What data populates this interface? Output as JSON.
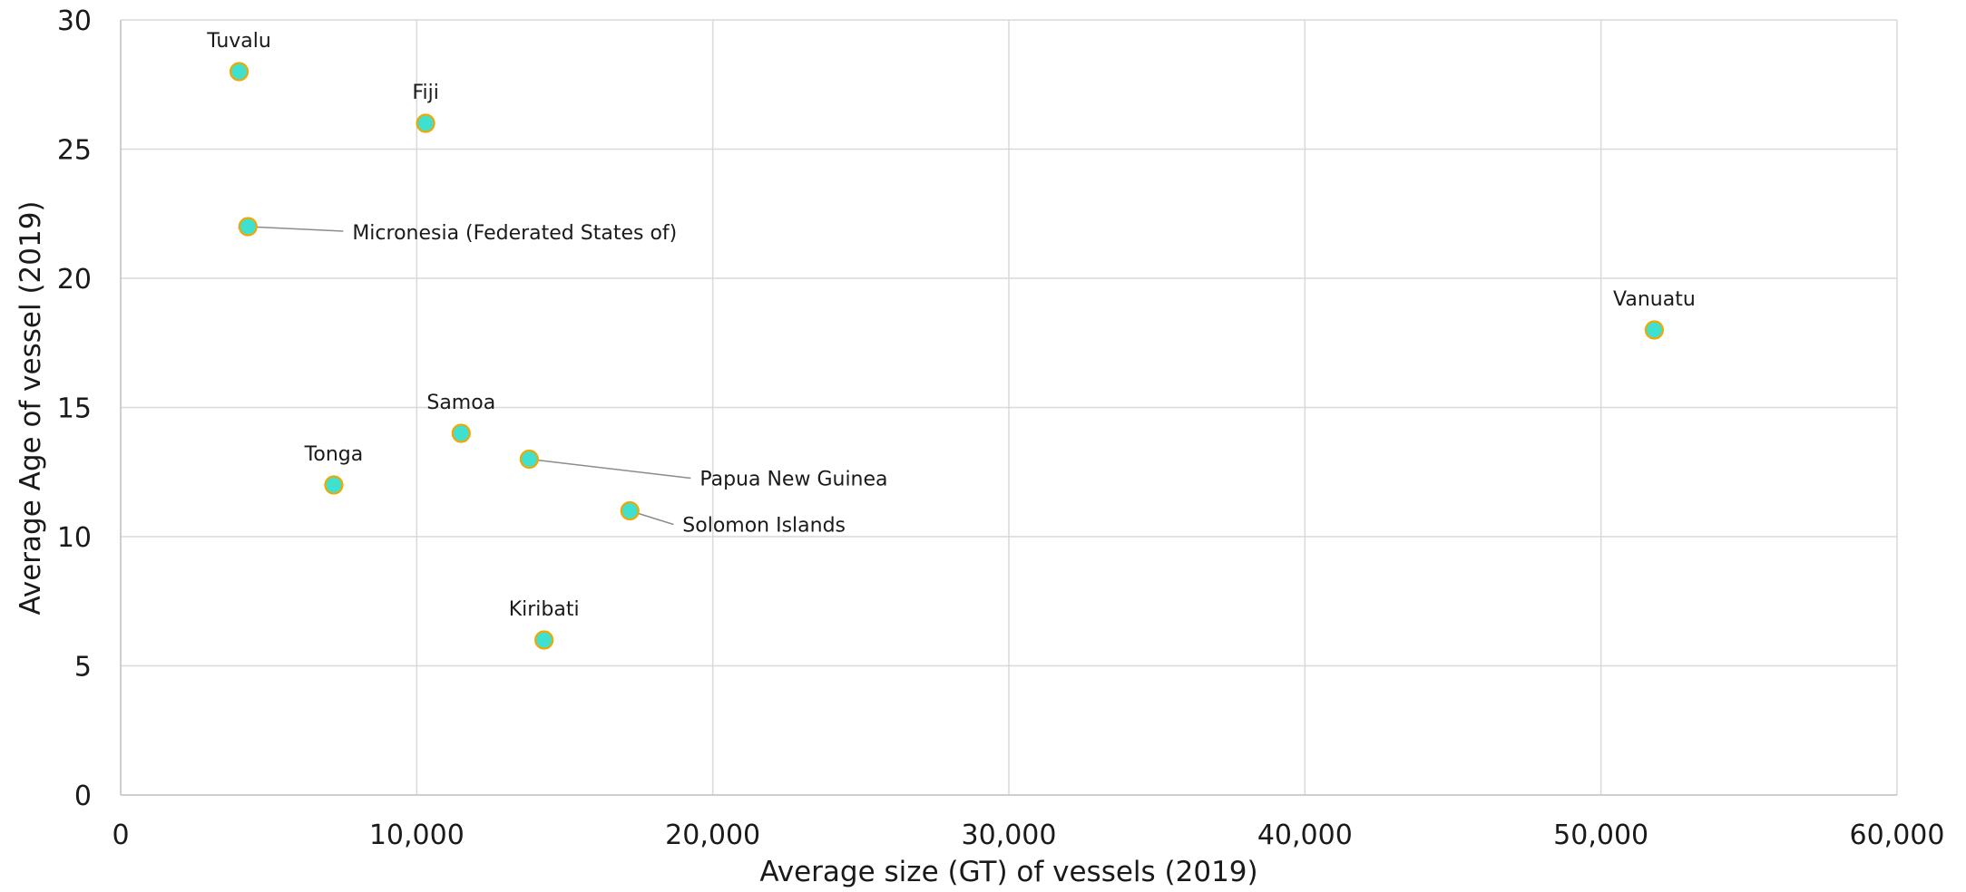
{
  "chart_data": {
    "type": "scatter",
    "title": "",
    "xlabel": "Average size (GT) of vessels (2019)",
    "ylabel": "Average Age of vessel (2019)",
    "xlim": [
      0,
      60000
    ],
    "ylim": [
      0,
      30
    ],
    "x_ticks": [
      0,
      10000,
      20000,
      30000,
      40000,
      50000,
      60000
    ],
    "x_tick_labels": [
      "0",
      "10,000",
      "20,000",
      "30,000",
      "40,000",
      "50,000",
      "60,000"
    ],
    "y_ticks": [
      0,
      5,
      10,
      15,
      20,
      25,
      30
    ],
    "y_tick_labels": [
      "0",
      "5",
      "10",
      "15",
      "20",
      "25",
      "30"
    ],
    "grid": true,
    "legend": "none",
    "marker_fill": "#40e0d0",
    "marker_edge": "#f0a800",
    "points": [
      {
        "label": "Tuvalu",
        "x": 4000,
        "y": 28
      },
      {
        "label": "Fiji",
        "x": 10300,
        "y": 26
      },
      {
        "label": "Micronesia (Federated States of)",
        "x": 4300,
        "y": 22
      },
      {
        "label": "Vanuatu",
        "x": 51800,
        "y": 18
      },
      {
        "label": "Samoa",
        "x": 11500,
        "y": 14
      },
      {
        "label": "Tonga",
        "x": 7200,
        "y": 12
      },
      {
        "label": "Papua New Guinea",
        "x": 13800,
        "y": 13
      },
      {
        "label": "Solomon Islands",
        "x": 17200,
        "y": 11
      },
      {
        "label": "Kiribati",
        "x": 14300,
        "y": 6
      }
    ]
  }
}
